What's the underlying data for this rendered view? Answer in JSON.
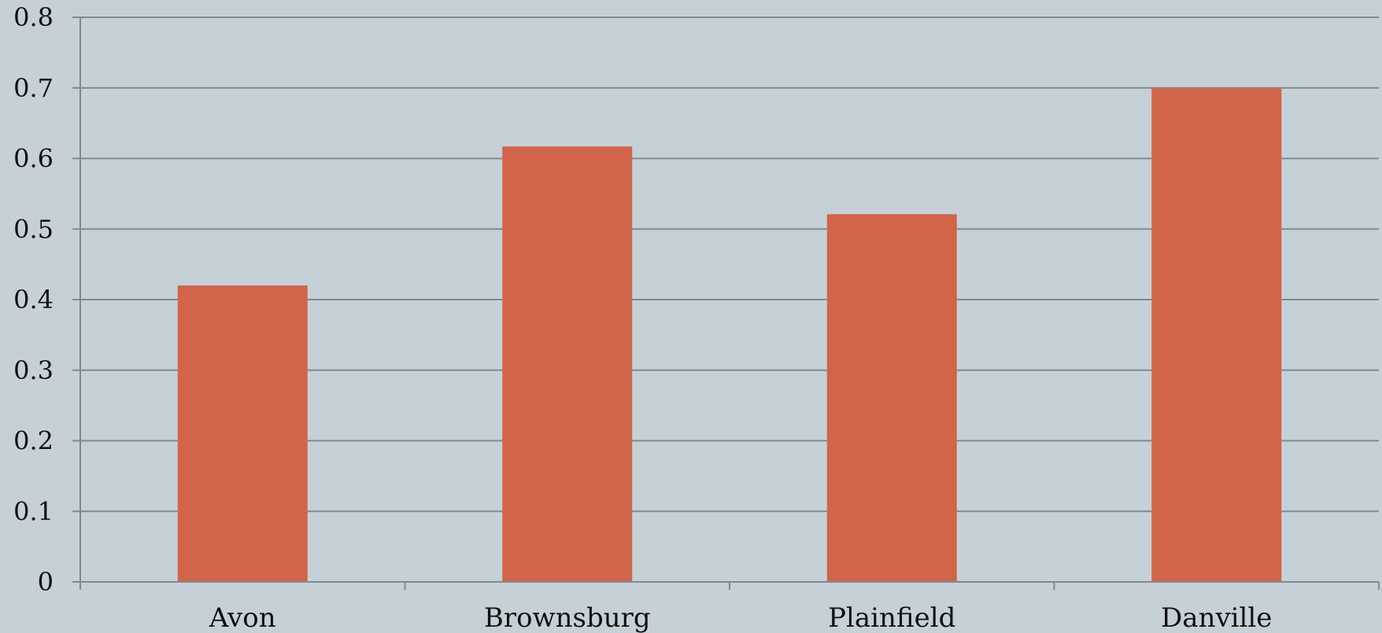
{
  "chart_data": {
    "type": "bar",
    "title": "",
    "xlabel": "",
    "ylabel": "",
    "categories": [
      "Avon",
      "Brownsburg",
      "Plainfield",
      "Danville"
    ],
    "series": [
      {
        "values": [
          0.42,
          0.617,
          0.521,
          0.7
        ]
      }
    ],
    "ylim": [
      0,
      0.8
    ],
    "yticks": [
      0,
      0.1,
      0.2,
      0.3,
      0.4,
      0.5,
      0.6,
      0.7,
      0.8
    ],
    "ytick_labels": [
      "0",
      "0.1",
      "0.2",
      "0.3",
      "0.4",
      "0.5",
      "0.6",
      "0.7",
      "0.8"
    ],
    "grid": true,
    "legend": "none"
  },
  "colors": {
    "background": "#c5d1d7",
    "bar": "#d2644a",
    "gridline": "#7f8a90",
    "axis": "#7f8a90",
    "text": "#111111"
  }
}
